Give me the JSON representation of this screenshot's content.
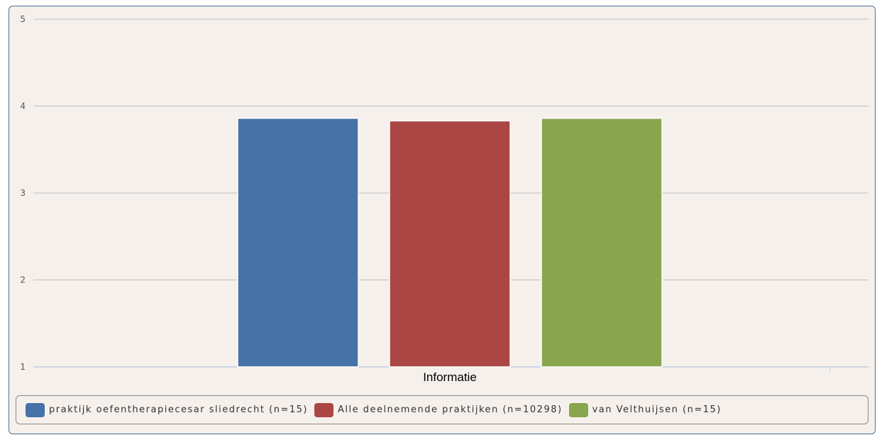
{
  "chart_data": {
    "type": "bar",
    "categories": [
      "Informatie"
    ],
    "series": [
      {
        "name": "praktijk oefentherapiecesar sliedrecht (n=15)",
        "values": [
          3.86
        ],
        "color": "#4572a7"
      },
      {
        "name": "Alle deelnemende praktijken (n=10298)",
        "values": [
          3.83
        ],
        "color": "#aa4643"
      },
      {
        "name": "van Velthuijsen (n=15)",
        "values": [
          3.86
        ],
        "color": "#89a54e"
      }
    ],
    "yticks": [
      "1",
      "2",
      "3",
      "4",
      "5"
    ],
    "ylim": [
      1,
      5
    ],
    "grid": true,
    "legend": "bottom"
  }
}
